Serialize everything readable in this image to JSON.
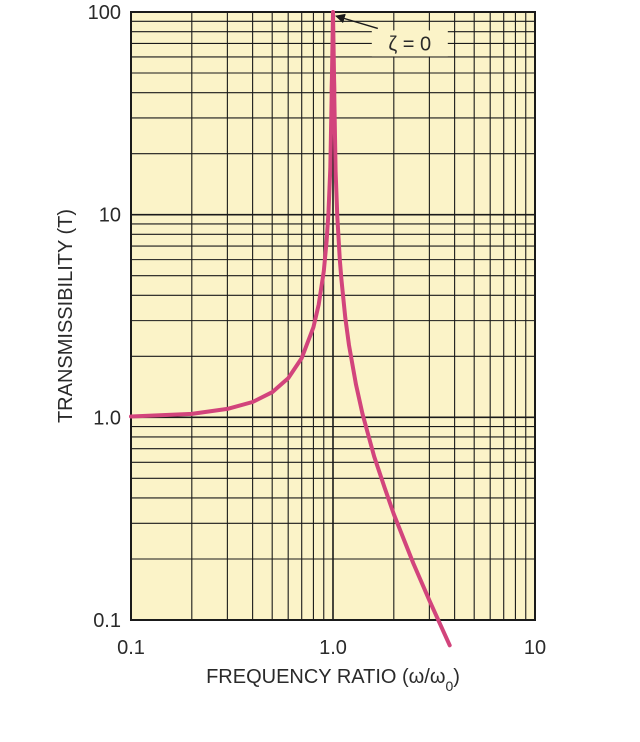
{
  "colors": {
    "plot_background": "#fbf3c8",
    "grid_line": "#1a1a1a",
    "curve": "#d2447c",
    "axis_text": "#2a2a2a"
  },
  "chart_data": {
    "type": "line",
    "x_scale": "log",
    "y_scale": "log",
    "xlim": [
      0.1,
      10
    ],
    "ylim": [
      0.1,
      100
    ],
    "grid": true,
    "xlabel_prefix": "FREQUENCY RATIO (ω/ω",
    "xlabel_sub": "0",
    "xlabel_suffix": ")",
    "ylabel": "TRANSMISSIBILITY (T)",
    "x_ticks": [
      {
        "value": 0.1,
        "label": "0.1"
      },
      {
        "value": 1,
        "label": "1.0"
      },
      {
        "value": 10,
        "label": "10"
      }
    ],
    "y_ticks": [
      {
        "value": 100,
        "label": "100"
      },
      {
        "value": 10,
        "label": "10"
      },
      {
        "value": 1,
        "label": "1.0"
      },
      {
        "value": 0.1,
        "label": "0.1"
      }
    ],
    "series": [
      {
        "name": "ζ = 0",
        "x": [
          0.1,
          0.2,
          0.3,
          0.4,
          0.5,
          0.6,
          0.7,
          0.8,
          0.85,
          0.9,
          0.93,
          0.95,
          0.97,
          0.99,
          1.01,
          1.03,
          1.05,
          1.08,
          1.1,
          1.15,
          1.2,
          1.3,
          1.4,
          1.6,
          1.8,
          2.0,
          2.5,
          3.0,
          3.5,
          3.78
        ],
        "y": [
          1.01,
          1.04,
          1.1,
          1.19,
          1.33,
          1.56,
          1.96,
          2.78,
          3.6,
          5.26,
          7.4,
          10.3,
          16.9,
          50,
          50,
          16.4,
          9.8,
          6.0,
          4.8,
          3.1,
          2.27,
          1.45,
          1.04,
          0.64,
          0.45,
          0.333,
          0.19,
          0.125,
          0.089,
          0.075
        ]
      }
    ],
    "annotations": [
      {
        "text": "ζ = 0",
        "x": 2.4,
        "y": 70,
        "arrow_to": {
          "x": 1.0,
          "y": 100
        }
      }
    ]
  }
}
